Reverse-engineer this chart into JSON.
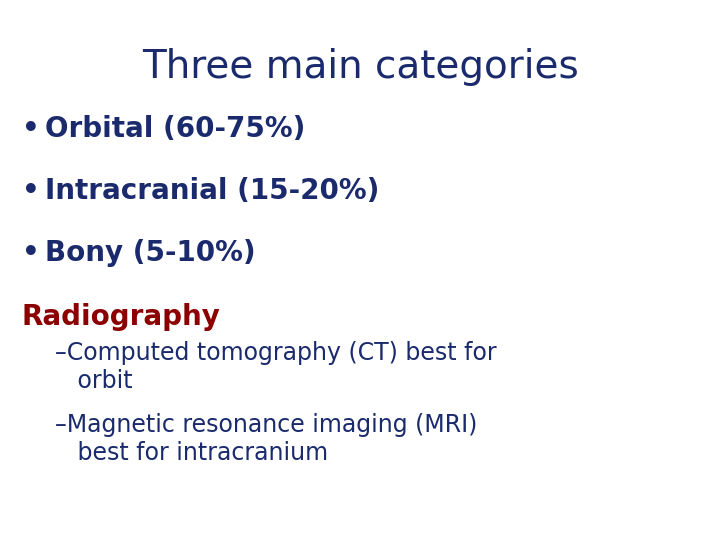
{
  "title": "Three main categories",
  "title_color": "#1a2a6c",
  "title_fontsize": 28,
  "title_weight": "normal",
  "background_color": "#ffffff",
  "bullet_items": [
    "Orbital (60-75%)",
    "Intracranial (15-20%)",
    "Bony (5-10%)"
  ],
  "bullet_color": "#1a2a6c",
  "bullet_fontsize": 20,
  "bullet_weight": "bold",
  "section_heading": "Radiography",
  "section_heading_color": "#8b0000",
  "section_heading_fontsize": 20,
  "section_heading_weight": "bold",
  "sub_items": [
    "–Computed tomography (CT) best for\n   orbit",
    "–Magnetic resonance imaging (MRI)\n   best for intracranium"
  ],
  "sub_color": "#1a2a6c",
  "sub_fontsize": 17,
  "sub_weight": "normal",
  "fig_width": 7.2,
  "fig_height": 5.4,
  "dpi": 100
}
